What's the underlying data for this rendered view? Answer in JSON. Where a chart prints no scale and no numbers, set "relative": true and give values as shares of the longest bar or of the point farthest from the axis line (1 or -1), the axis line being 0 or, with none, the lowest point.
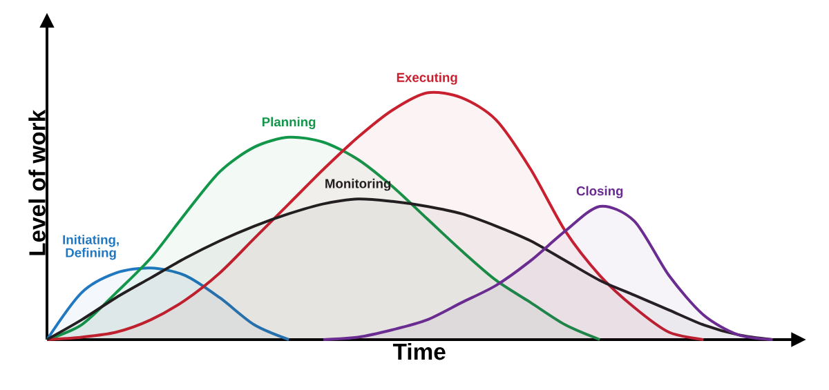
{
  "chart_data": {
    "type": "area",
    "relative": true,
    "xlabel": "Time",
    "ylabel": "Level of work",
    "legend": false,
    "categories": [
      null,
      null,
      null,
      null,
      null,
      null,
      null,
      null,
      null,
      null,
      null,
      null,
      null,
      null,
      null,
      null,
      null,
      null,
      null,
      null,
      null,
      null
    ],
    "series": [
      {
        "name": "Initiating, Defining",
        "color": "#1f78c1",
        "values": [
          0,
          0.19,
          0.27,
          0.29,
          0.26,
          0.17,
          0.06,
          0,
          null,
          null,
          null,
          null,
          null,
          null,
          null,
          null,
          null,
          null,
          null,
          null,
          null,
          null
        ]
      },
      {
        "name": "Planning",
        "color": "#12964a",
        "values": [
          0,
          0.06,
          0.19,
          0.33,
          0.51,
          0.68,
          0.78,
          0.82,
          0.8,
          0.73,
          0.62,
          0.49,
          0.36,
          0.24,
          0.15,
          0.06,
          0,
          null,
          null,
          null,
          null,
          null
        ]
      },
      {
        "name": "Executing",
        "color": "#c8202f",
        "values": [
          0,
          0.01,
          0.03,
          0.08,
          0.16,
          0.27,
          0.41,
          0.55,
          0.69,
          0.82,
          0.93,
          1,
          0.98,
          0.89,
          0.69,
          0.44,
          0.26,
          0.13,
          0.03,
          0,
          null,
          null
        ]
      },
      {
        "name": "Monitoring",
        "color": "#231f20",
        "values": [
          0,
          0.08,
          0.17,
          0.25,
          0.33,
          0.4,
          0.46,
          0.51,
          0.55,
          0.57,
          0.56,
          0.54,
          0.51,
          0.46,
          0.4,
          0.32,
          0.24,
          0.18,
          0.12,
          0.06,
          0.02,
          0
        ]
      },
      {
        "name": "Closing",
        "color": "#6a2c91",
        "values": [
          null,
          null,
          null,
          null,
          null,
          null,
          null,
          null,
          0,
          0.01,
          0.04,
          0.08,
          0.15,
          0.22,
          0.32,
          0.44,
          0.54,
          0.48,
          0.26,
          0.1,
          0.02,
          0
        ]
      }
    ]
  }
}
